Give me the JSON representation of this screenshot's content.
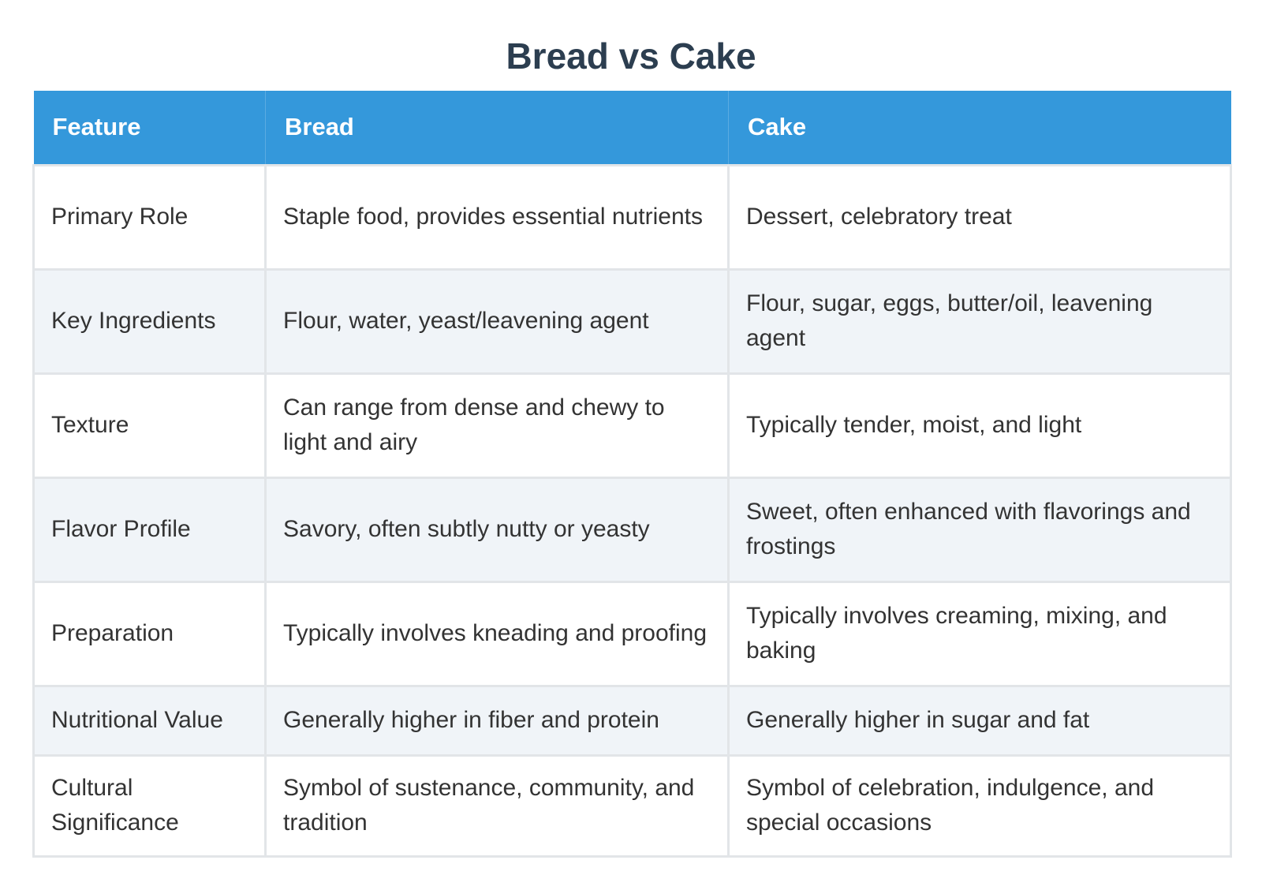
{
  "title": "Bread vs Cake",
  "colors": {
    "header_bg": "#3498db",
    "header_text": "#ffffff",
    "title_text": "#2c3e50",
    "row_alt_bg": "#f0f4f8",
    "border": "#e2e5e8"
  },
  "table": {
    "headers": [
      "Feature",
      "Bread",
      "Cake"
    ],
    "rows": [
      [
        "Primary Role",
        "Staple food, provides essential nutrients",
        "Dessert, celebratory treat"
      ],
      [
        "Key Ingredients",
        "Flour, water, yeast/leavening agent",
        "Flour, sugar, eggs, butter/oil, leavening agent"
      ],
      [
        "Texture",
        "Can range from dense and chewy to light and airy",
        "Typically tender, moist, and light"
      ],
      [
        "Flavor Profile",
        "Savory, often subtly nutty or yeasty",
        "Sweet, often enhanced with flavorings and frostings"
      ],
      [
        "Preparation",
        "Typically involves kneading and proofing",
        "Typically involves creaming, mixing, and baking"
      ],
      [
        "Nutritional Value",
        "Generally higher in fiber and protein",
        "Generally higher in sugar and fat"
      ],
      [
        "Cultural Significance",
        "Symbol of sustenance, community, and tradition",
        "Symbol of celebration, indulgence, and special occasions"
      ]
    ]
  }
}
